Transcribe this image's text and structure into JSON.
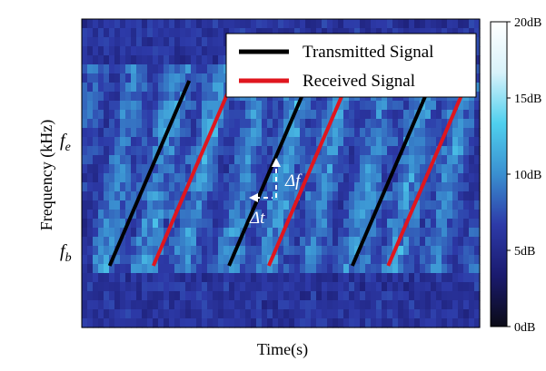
{
  "chart_data": {
    "type": "heatmap",
    "title": "",
    "xlabel": "Time(s)",
    "ylabel": "Frequency (kHz)",
    "y_ticks": [
      {
        "label_main": "f",
        "label_sub": "e",
        "level": 0.8
      },
      {
        "label_main": "f",
        "label_sub": "b",
        "level": 0.2
      }
    ],
    "colorbar": {
      "min": 0,
      "max": 20,
      "unit": "dB",
      "ticks": [
        "0dB",
        "5dB",
        "10dB",
        "15dB",
        "20dB"
      ],
      "colors": [
        "#0b0b16",
        "#1a1a6e",
        "#2d3aa8",
        "#3a8fd0",
        "#4fd0ee",
        "#d8f2fa",
        "#ffffff"
      ]
    },
    "legend": {
      "position": "top-right",
      "entries": [
        {
          "name": "Transmitted Signal",
          "color": "#000000"
        },
        {
          "name": "Received Signal",
          "color": "#e0161e"
        }
      ]
    },
    "series": [
      {
        "name": "Transmitted Signal",
        "color": "#000000",
        "segments": [
          [
            0.07,
            0.2,
            0.27,
            0.8
          ],
          [
            0.37,
            0.2,
            0.57,
            0.8
          ],
          [
            0.68,
            0.2,
            0.88,
            0.8
          ]
        ]
      },
      {
        "name": "Received Signal",
        "color": "#e0161e",
        "segments": [
          [
            0.18,
            0.2,
            0.38,
            0.8
          ],
          [
            0.47,
            0.2,
            0.67,
            0.8
          ],
          [
            0.77,
            0.2,
            0.97,
            0.8
          ]
        ]
      }
    ],
    "annotations": [
      {
        "text": "Δf",
        "kind": "frequency-shift"
      },
      {
        "text": "Δt",
        "kind": "time-delay"
      }
    ]
  }
}
